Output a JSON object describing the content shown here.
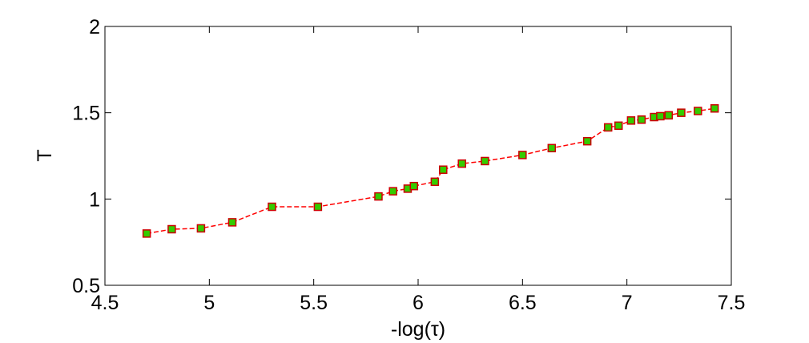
{
  "chart_data": {
    "type": "line",
    "title": "",
    "xlabel": "-log(τ)",
    "ylabel": "T",
    "xlim": [
      4.5,
      7.5
    ],
    "ylim": [
      0.5,
      2
    ],
    "x_ticks": [
      "4.5",
      "5",
      "5.5",
      "6",
      "6.5",
      "7",
      "7.5"
    ],
    "y_ticks": [
      "0.5",
      "1",
      "1.5",
      "2"
    ],
    "grid": false,
    "legend": "none",
    "series": [
      {
        "line_color": "#ff0000",
        "line_style": "dashed",
        "marker": "square",
        "marker_face": "#33cc00",
        "marker_edge": "#cc0000",
        "x": [
          4.7,
          4.82,
          4.96,
          5.11,
          5.3,
          5.52,
          5.81,
          5.88,
          5.95,
          5.98,
          6.08,
          6.12,
          6.21,
          6.32,
          6.5,
          6.64,
          6.81,
          6.91,
          6.96,
          7.02,
          7.07,
          7.13,
          7.16,
          7.2,
          7.26,
          7.34,
          7.42
        ],
        "y": [
          0.8,
          0.825,
          0.83,
          0.865,
          0.955,
          0.955,
          1.015,
          1.045,
          1.06,
          1.075,
          1.1,
          1.17,
          1.205,
          1.22,
          1.255,
          1.295,
          1.335,
          1.415,
          1.425,
          1.455,
          1.46,
          1.475,
          1.48,
          1.485,
          1.5,
          1.51,
          1.525
        ]
      }
    ]
  }
}
